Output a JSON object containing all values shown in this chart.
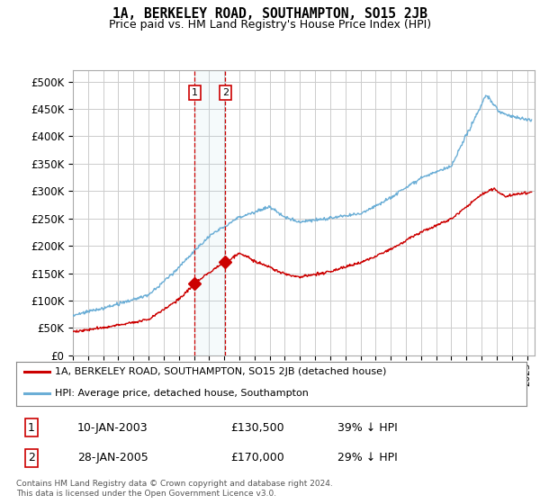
{
  "title": "1A, BERKELEY ROAD, SOUTHAMPTON, SO15 2JB",
  "subtitle": "Price paid vs. HM Land Registry's House Price Index (HPI)",
  "ylabel_ticks": [
    "£0",
    "£50K",
    "£100K",
    "£150K",
    "£200K",
    "£250K",
    "£300K",
    "£350K",
    "£400K",
    "£450K",
    "£500K"
  ],
  "ytick_values": [
    0,
    50000,
    100000,
    150000,
    200000,
    250000,
    300000,
    350000,
    400000,
    450000,
    500000
  ],
  "ylim": [
    0,
    520000
  ],
  "xlim_start": 1995.0,
  "xlim_end": 2025.5,
  "hpi_color": "#6baed6",
  "price_color": "#cc0000",
  "sale1_date": 2003.04,
  "sale1_price": 130500,
  "sale2_date": 2005.07,
  "sale2_price": 170000,
  "legend_entries": [
    "1A, BERKELEY ROAD, SOUTHAMPTON, SO15 2JB (detached house)",
    "HPI: Average price, detached house, Southampton"
  ],
  "table_rows": [
    {
      "num": "1",
      "date": "10-JAN-2003",
      "price": "£130,500",
      "hpi": "39% ↓ HPI"
    },
    {
      "num": "2",
      "date": "28-JAN-2005",
      "price": "£170,000",
      "hpi": "29% ↓ HPI"
    }
  ],
  "footnote": "Contains HM Land Registry data © Crown copyright and database right 2024.\nThis data is licensed under the Open Government Licence v3.0.",
  "bg_color": "#ffffff",
  "grid_color": "#cccccc"
}
